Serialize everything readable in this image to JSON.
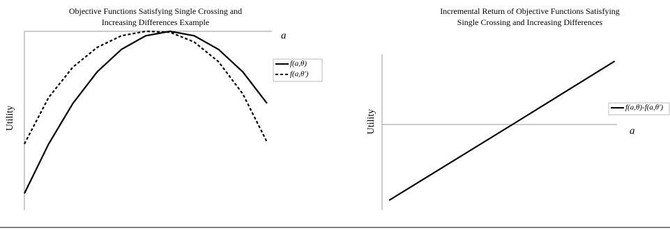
{
  "chart_data": [
    {
      "type": "line",
      "title": [
        "Objective Functions Satisfying Single Crossing and",
        "Increasing Differences Example"
      ],
      "x_label": "a",
      "y_label": "Utility",
      "x": [
        0,
        1,
        2,
        3,
        4,
        5,
        6,
        7,
        8,
        9,
        10
      ],
      "xlim": [
        0,
        10.2
      ],
      "ylim": [
        -10,
        0
      ],
      "series": [
        {
          "name": "f(a,θ)",
          "color": "#000000",
          "dash": false,
          "values": [
            -9.07,
            -6.3,
            -4.03,
            -2.27,
            -1.01,
            -0.25,
            0,
            -0.25,
            -1.01,
            -2.27,
            -4.03
          ]
        },
        {
          "name": "f(a,θ')",
          "color": "#000000",
          "dash": true,
          "values": [
            -6.3,
            -3.7,
            -2.0,
            -0.9,
            -0.25,
            0,
            -0.05,
            -0.6,
            -1.7,
            -3.5,
            -6.2
          ]
        }
      ]
    },
    {
      "type": "line",
      "title": [
        "Incremental Return of Objective Functions Satisfying",
        "Single Crossing and Increasing Differences"
      ],
      "x_label": "a",
      "y_label": "Utility",
      "x": [
        0.3,
        5.55,
        9.9
      ],
      "xlim": [
        0,
        10
      ],
      "ylim": [
        -12.3,
        10.1
      ],
      "series": [
        {
          "name": "f(a,θ)-f(a,θ')",
          "color": "#000000",
          "dash": false,
          "values": [
            -10.9,
            0,
            9.1
          ]
        }
      ]
    }
  ]
}
